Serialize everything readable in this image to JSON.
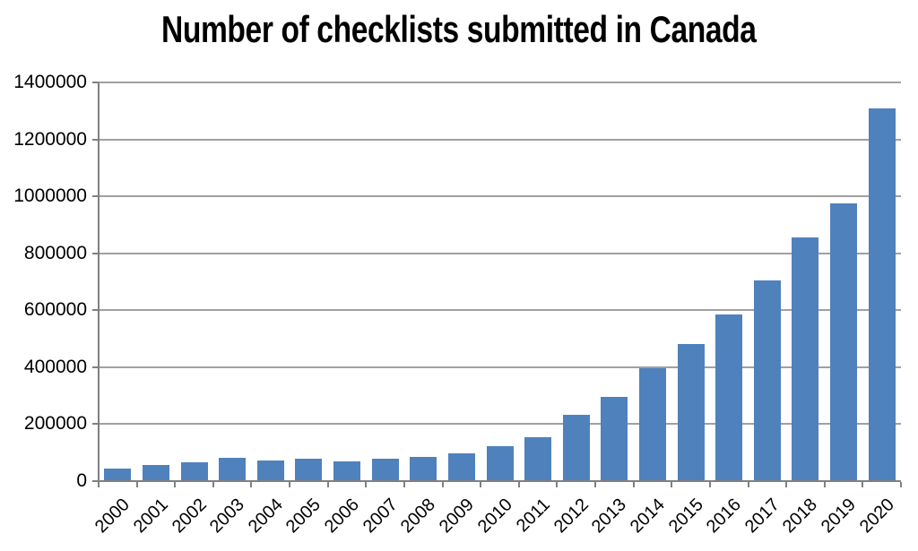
{
  "chart_data": {
    "type": "bar",
    "title": "Number of checklists submitted in Canada",
    "categories": [
      "2000",
      "2001",
      "2002",
      "2003",
      "2004",
      "2005",
      "2006",
      "2007",
      "2008",
      "2009",
      "2010",
      "2011",
      "2012",
      "2013",
      "2014",
      "2015",
      "2016",
      "2017",
      "2018",
      "2019",
      "2020"
    ],
    "values": [
      45000,
      58000,
      67000,
      82000,
      73000,
      80000,
      68000,
      80000,
      85000,
      98000,
      124000,
      153000,
      234000,
      296000,
      395000,
      480000,
      585000,
      705000,
      855000,
      975000,
      1310000
    ],
    "xlabel": "",
    "ylabel": "",
    "ylim": [
      0,
      1400000
    ],
    "ytick_step": 200000,
    "ytick_labels": [
      "0",
      "200000",
      "400000",
      "600000",
      "800000",
      "1000000",
      "1200000",
      "1400000"
    ],
    "grid": true,
    "legend": false,
    "colors": {
      "bar": "#4F81BD",
      "gridline": "#A0A0A0",
      "axis": "#808080",
      "text": "#000000",
      "background": "#FFFFFF"
    }
  }
}
